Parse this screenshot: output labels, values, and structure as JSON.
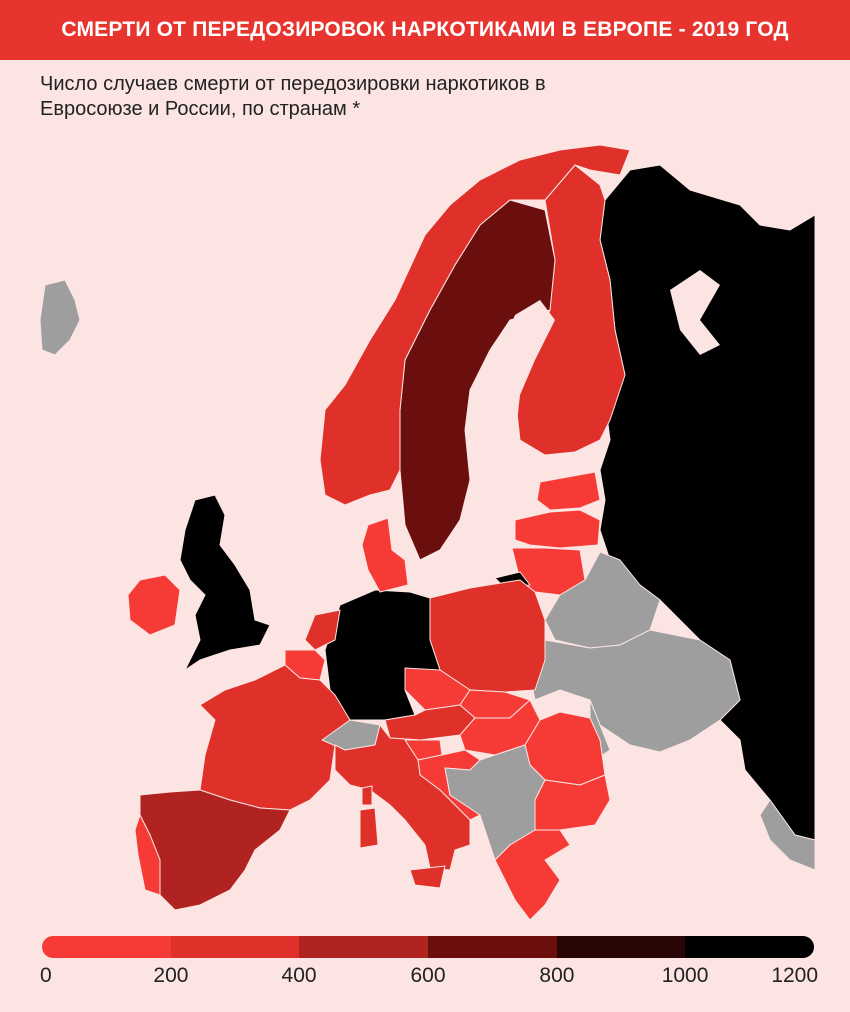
{
  "header": {
    "title": "СМЕРТИ ОТ ПЕРЕДОЗИРОВОК НАРКОТИКАМИ В ЕВРОПЕ - 2019 ГОД",
    "subtitle_line1": "Число случаев смерти от передозировки наркотиков в",
    "subtitle_line2": "Евросоюзе и России, по странам *"
  },
  "legend": {
    "colors": [
      "#f63b36",
      "#e0302a",
      "#b02320",
      "#6a0f0e",
      "#2a0505",
      "#000000"
    ],
    "ticks": [
      "0",
      "200",
      "400",
      "600",
      "800",
      "1000",
      "1200"
    ],
    "no_data_color": "#9e9e9e",
    "background": "#fbe4e2"
  },
  "map": {
    "regions": [
      {
        "name": "iceland",
        "bin": "no-data"
      },
      {
        "name": "norway",
        "bin": "200-400"
      },
      {
        "name": "sweden",
        "bin": "600-800"
      },
      {
        "name": "finland",
        "bin": "200-400"
      },
      {
        "name": "russia",
        "bin": "1000-1200"
      },
      {
        "name": "estonia",
        "bin": "0-200"
      },
      {
        "name": "latvia",
        "bin": "0-200"
      },
      {
        "name": "lithuania",
        "bin": "0-200"
      },
      {
        "name": "kaliningrad",
        "bin": "1000-1200"
      },
      {
        "name": "belarus",
        "bin": "no-data"
      },
      {
        "name": "ukraine",
        "bin": "no-data"
      },
      {
        "name": "moldova",
        "bin": "no-data"
      },
      {
        "name": "denmark",
        "bin": "0-200"
      },
      {
        "name": "united-kingdom",
        "bin": "1000-1200"
      },
      {
        "name": "ireland",
        "bin": "0-200"
      },
      {
        "name": "netherlands",
        "bin": "200-400"
      },
      {
        "name": "belgium",
        "bin": "0-200"
      },
      {
        "name": "luxembourg",
        "bin": "0-200"
      },
      {
        "name": "germany",
        "bin": "1000-1200"
      },
      {
        "name": "poland",
        "bin": "200-400"
      },
      {
        "name": "czechia",
        "bin": "0-200"
      },
      {
        "name": "slovakia",
        "bin": "0-200"
      },
      {
        "name": "austria",
        "bin": "200-400"
      },
      {
        "name": "switzerland",
        "bin": "no-data"
      },
      {
        "name": "hungary",
        "bin": "0-200"
      },
      {
        "name": "romania",
        "bin": "0-200"
      },
      {
        "name": "slovenia",
        "bin": "0-200"
      },
      {
        "name": "croatia",
        "bin": "0-200"
      },
      {
        "name": "western-balkans",
        "bin": "no-data"
      },
      {
        "name": "bulgaria",
        "bin": "0-200"
      },
      {
        "name": "greece",
        "bin": "0-200"
      },
      {
        "name": "turkey",
        "bin": "no-data"
      },
      {
        "name": "france",
        "bin": "200-400"
      },
      {
        "name": "spain",
        "bin": "400-600"
      },
      {
        "name": "portugal",
        "bin": "0-200"
      },
      {
        "name": "italy",
        "bin": "200-400"
      },
      {
        "name": "corsica",
        "bin": "200-400"
      },
      {
        "name": "sardinia",
        "bin": "200-400"
      },
      {
        "name": "sicily",
        "bin": "200-400"
      },
      {
        "name": "cyprus-area",
        "bin": "0-200"
      }
    ]
  }
}
